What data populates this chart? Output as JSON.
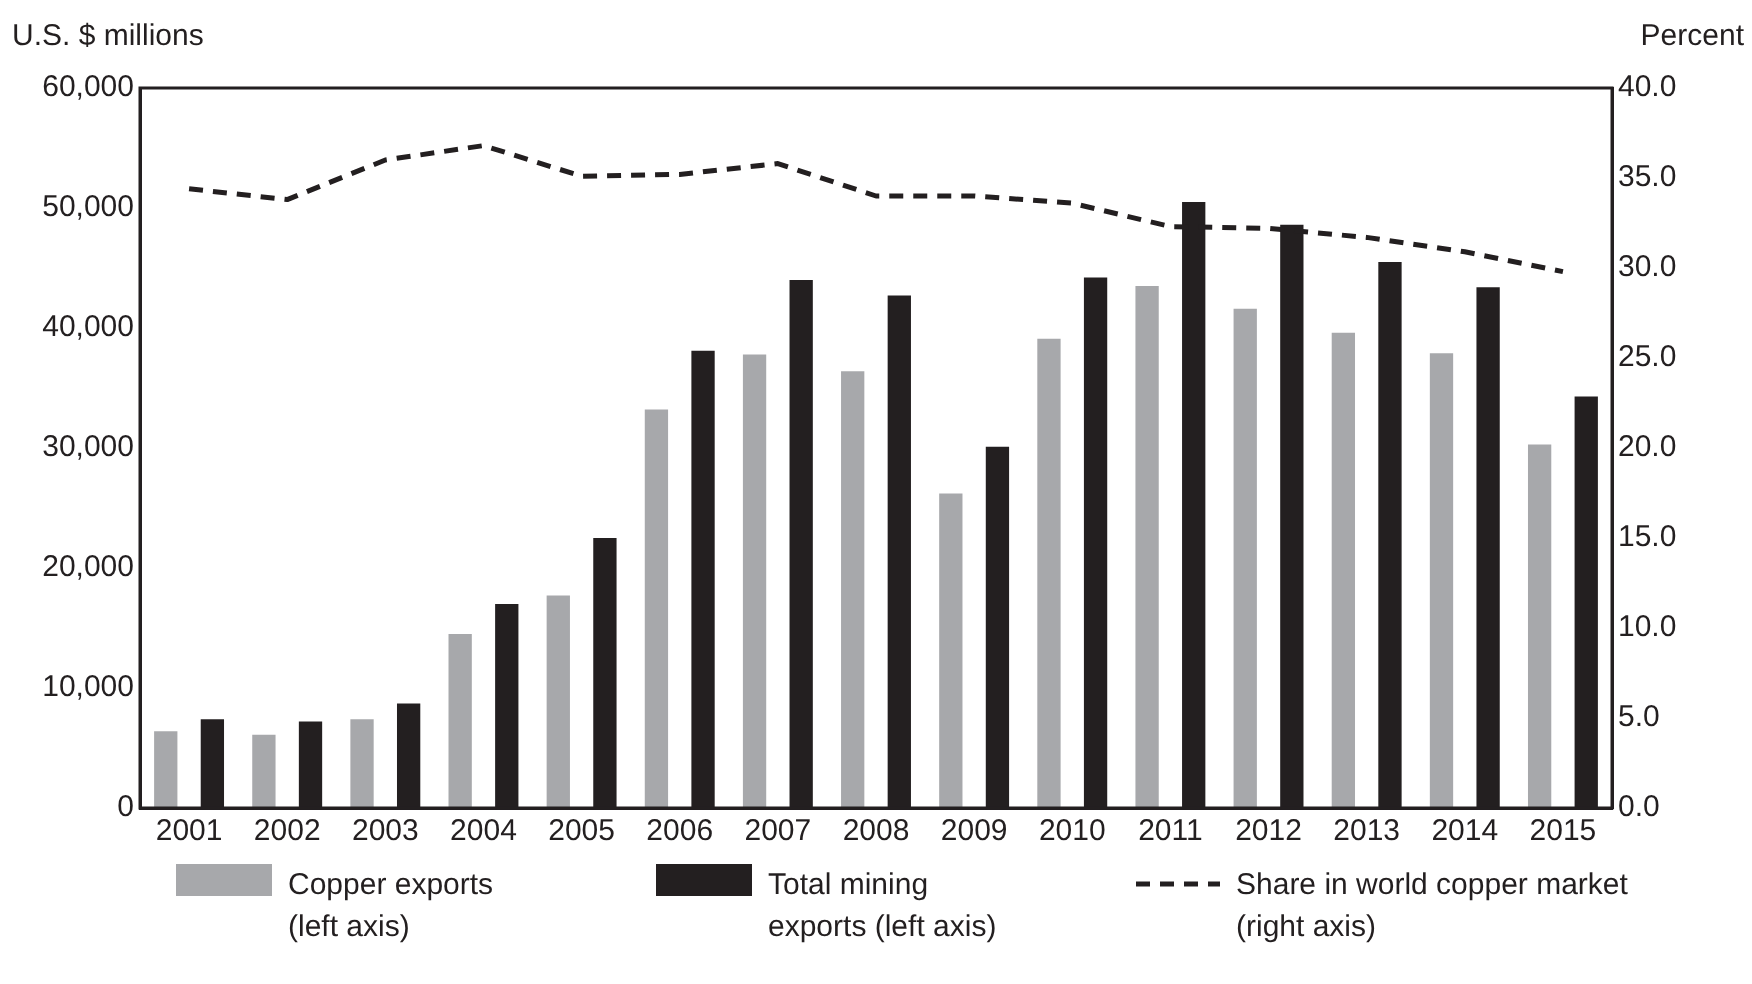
{
  "chart_data": {
    "type": "bar",
    "ylabel": "U.S. $ millions",
    "y2label": "Percent",
    "categories": [
      "2001",
      "2002",
      "2003",
      "2004",
      "2005",
      "2006",
      "2007",
      "2008",
      "2009",
      "2010",
      "2011",
      "2012",
      "2013",
      "2014",
      "2015"
    ],
    "series": [
      {
        "name": "Copper exports (left axis)",
        "color": "#a7a8ab",
        "values": [
          6400,
          6100,
          7400,
          14500,
          17700,
          33200,
          37800,
          36400,
          26200,
          39100,
          43500,
          41600,
          39600,
          37900,
          30300
        ]
      },
      {
        "name": "Total mining exports (left axis)",
        "color": "#231f20",
        "values": [
          7400,
          7200,
          8700,
          17000,
          22500,
          38100,
          44000,
          42700,
          30100,
          44200,
          50500,
          48600,
          45500,
          43400,
          34300
        ]
      },
      {
        "name": "Share in world copper market (right axis)",
        "type": "line",
        "axis": "y2",
        "color": "#231f20",
        "line_style": "dashed",
        "marker": "none",
        "values": [
          34.4,
          33.8,
          36.0,
          36.8,
          35.1,
          35.2,
          35.8,
          34.0,
          34.0,
          33.6,
          32.3,
          32.2,
          31.7,
          30.9,
          29.8
        ]
      }
    ],
    "ylim": [
      0,
      60000
    ],
    "yticks": [
      0,
      {
        "value": 10000,
        "label": "10,000"
      },
      {
        "value": 20000,
        "label": "20,000"
      },
      {
        "value": 30000,
        "label": "30,000"
      },
      {
        "value": 40000,
        "label": "40,000"
      },
      {
        "value": 50000,
        "label": "50,000"
      },
      {
        "value": 60000,
        "label": "60,000"
      }
    ],
    "y2lim": [
      0,
      40
    ],
    "y2ticks": [
      {
        "value": 0,
        "label": "0.0"
      },
      {
        "value": 5,
        "label": "5.0"
      },
      {
        "value": 10,
        "label": "10.0"
      },
      {
        "value": 15,
        "label": "15.0"
      },
      {
        "value": 20,
        "label": "20.0"
      },
      {
        "value": 25,
        "label": "25.0"
      },
      {
        "value": 30,
        "label": "30.0"
      },
      {
        "value": 35,
        "label": "35.0"
      },
      {
        "value": 40,
        "label": "40.0"
      }
    ],
    "grid": false,
    "legend": "bottom"
  }
}
